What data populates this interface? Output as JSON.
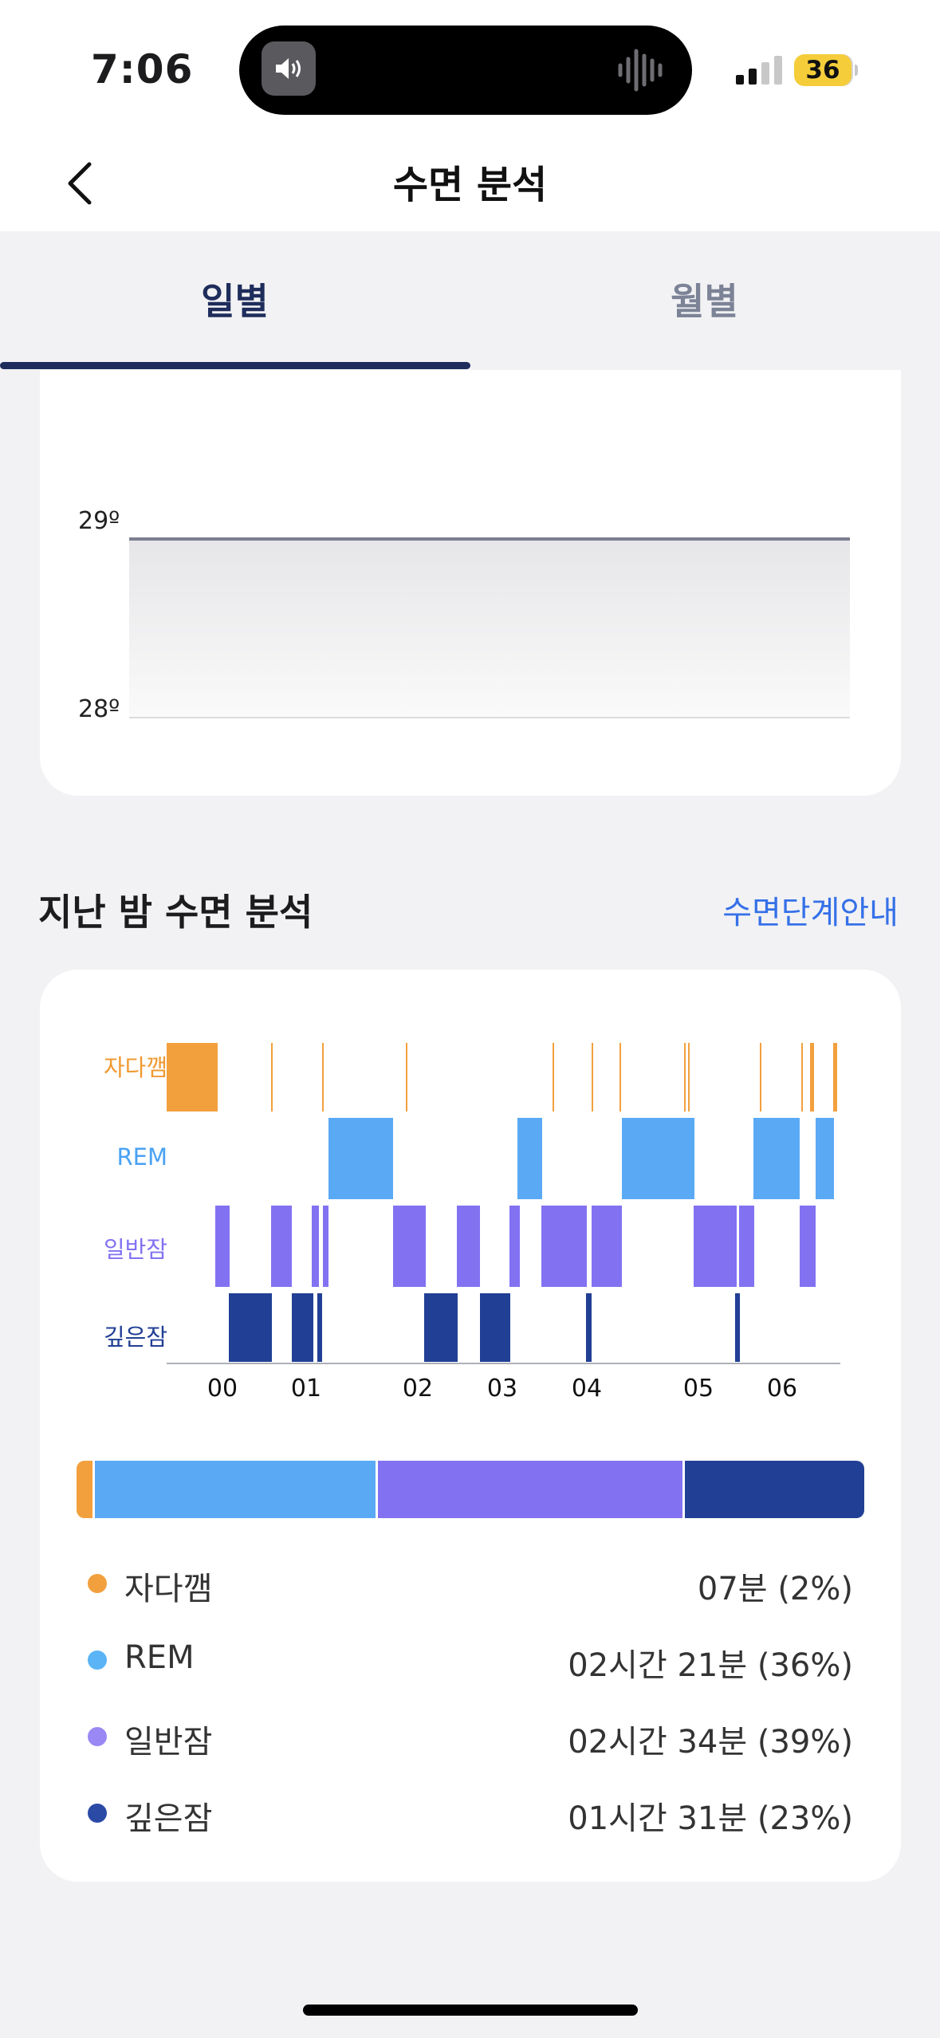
{
  "status": {
    "time": "7:06",
    "battery": "36"
  },
  "nav": {
    "title": "수면 분석",
    "back_icon": "chevron-left-icon"
  },
  "tabs": [
    {
      "label": "일별",
      "active": true
    },
    {
      "label": "월별",
      "active": false
    }
  ],
  "temperature": {
    "labels": [
      "29º",
      "28º"
    ],
    "series_value": 29,
    "range": [
      28,
      29
    ]
  },
  "section": {
    "title": "지난 밤 수면 분석",
    "link": "수면단계안내"
  },
  "chart_data": {
    "type": "hypnogram",
    "stages": [
      "자다깸",
      "REM",
      "일반잠",
      "깊은잠"
    ],
    "stage_colors": {
      "자다깸": "#f2a03d",
      "REM": "#5aa9f5",
      "일반잠": "#8272f2",
      "깊은잠": "#213f94"
    },
    "hour_ticks": [
      "00",
      "01",
      "02",
      "03",
      "04",
      "05",
      "06"
    ]
  },
  "summary": {
    "bar_fractions": [
      0.02,
      0.36,
      0.39,
      0.23
    ],
    "items": [
      {
        "name": "자다깸",
        "value": "07분 (2%)",
        "color": "#f2a03d"
      },
      {
        "name": "REM",
        "value": "02시간 21분 (36%)",
        "color": "#5ab4f5"
      },
      {
        "name": "일반잠",
        "value": "02시간 34분 (39%)",
        "color": "#9a88f5"
      },
      {
        "name": "깊은잠",
        "value": "01시간 31분 (23%)",
        "color": "#2a4aa6"
      }
    ]
  }
}
